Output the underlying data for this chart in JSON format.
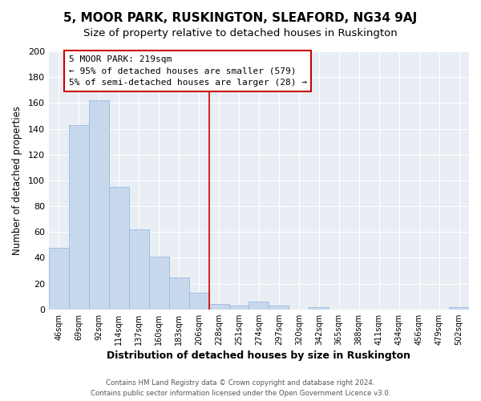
{
  "title": "5, MOOR PARK, RUSKINGTON, SLEAFORD, NG34 9AJ",
  "subtitle": "Size of property relative to detached houses in Ruskington",
  "xlabel": "Distribution of detached houses by size in Ruskington",
  "ylabel": "Number of detached properties",
  "bar_labels": [
    "46sqm",
    "69sqm",
    "92sqm",
    "114sqm",
    "137sqm",
    "160sqm",
    "183sqm",
    "206sqm",
    "228sqm",
    "251sqm",
    "274sqm",
    "297sqm",
    "320sqm",
    "342sqm",
    "365sqm",
    "388sqm",
    "411sqm",
    "434sqm",
    "456sqm",
    "479sqm",
    "502sqm"
  ],
  "bar_heights": [
    48,
    143,
    162,
    95,
    62,
    41,
    25,
    13,
    4,
    3,
    6,
    3,
    0,
    2,
    0,
    0,
    0,
    0,
    0,
    0,
    2
  ],
  "bar_color": "#c8d8ec",
  "bar_edge_color": "#99bbdd",
  "vline_color": "#cc0000",
  "annotation_title": "5 MOOR PARK: 219sqm",
  "annotation_line1": "← 95% of detached houses are smaller (579)",
  "annotation_line2": "5% of semi-detached houses are larger (28) →",
  "annotation_box_facecolor": "#ffffff",
  "annotation_box_edgecolor": "#cc0000",
  "ylim": [
    0,
    200
  ],
  "yticks": [
    0,
    20,
    40,
    60,
    80,
    100,
    120,
    140,
    160,
    180,
    200
  ],
  "footer1": "Contains HM Land Registry data © Crown copyright and database right 2024.",
  "footer2": "Contains public sector information licensed under the Open Government Licence v3.0.",
  "bg_color": "#ffffff",
  "plot_bg_color": "#e8eef4",
  "grid_color": "#ffffff",
  "title_fontsize": 11,
  "subtitle_fontsize": 9.5,
  "xlabel_fontsize": 9,
  "ylabel_fontsize": 8.5
}
